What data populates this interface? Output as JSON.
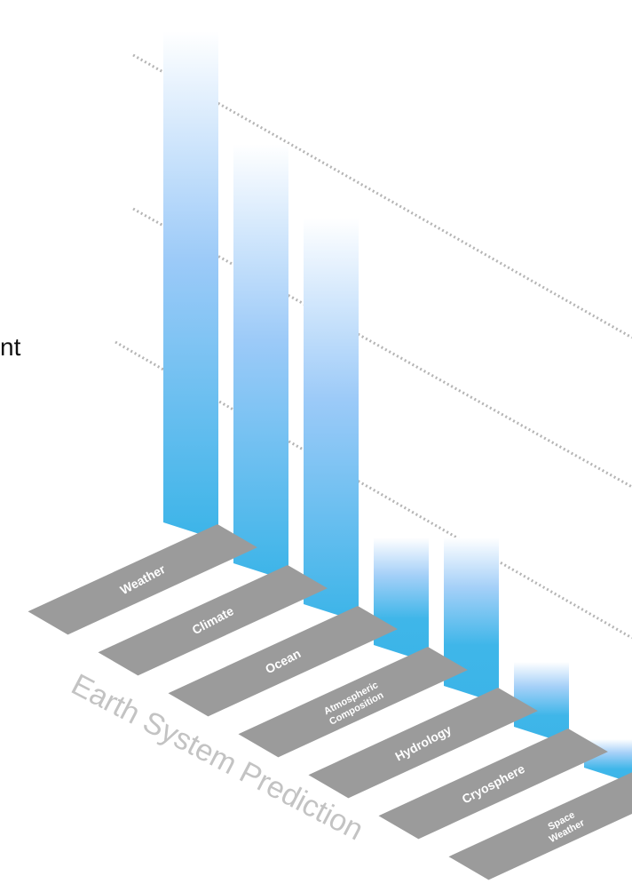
{
  "diagram": {
    "left_text": "nt",
    "axis_label": "Earth System Prediction",
    "categories": [
      {
        "label_lines": [
          "Weather"
        ]
      },
      {
        "label_lines": [
          "Climate"
        ]
      },
      {
        "label_lines": [
          "Ocean"
        ]
      },
      {
        "label_lines": [
          "Atmospheric",
          "Composition"
        ]
      },
      {
        "label_lines": [
          "Hydrology"
        ]
      },
      {
        "label_lines": [
          "Cryosphere"
        ]
      },
      {
        "label_lines": [
          "Space",
          "Weather"
        ]
      }
    ],
    "colors": {
      "bar_bottom": "#3bb4e8",
      "bar_mid": "#9ccaf8",
      "tile": "#9b9b9b",
      "dotted_line": "#b5b5b5"
    }
  }
}
